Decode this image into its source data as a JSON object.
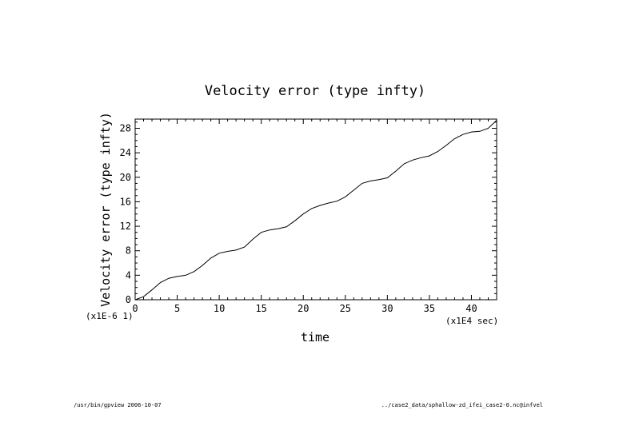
{
  "chart_data": {
    "type": "line",
    "title": "Velocity error (type infty)",
    "xlabel": "time",
    "ylabel": "Velocity error (type infty)",
    "x_unit": "(x1E4 sec)",
    "y_unit": "(x1E-6 1)",
    "xlim": [
      0,
      43
    ],
    "ylim": [
      0,
      29.5
    ],
    "x_ticks": [
      0,
      5,
      10,
      15,
      20,
      25,
      30,
      35,
      40
    ],
    "y_ticks": [
      0,
      4,
      8,
      12,
      16,
      20,
      24,
      28
    ],
    "grid": false,
    "series": [
      {
        "x": [
          0,
          1,
          2,
          3,
          4,
          5,
          6,
          7,
          8,
          9,
          10,
          11,
          12,
          13,
          14,
          15,
          16,
          17,
          18,
          19,
          20,
          21,
          22,
          23,
          24,
          25,
          26,
          27,
          28,
          29,
          30,
          31,
          32,
          33,
          34,
          35,
          36,
          37,
          38,
          39,
          40,
          41,
          42,
          43
        ],
        "y": [
          0,
          0.5,
          1.6,
          2.8,
          3.5,
          3.8,
          4.0,
          4.6,
          5.6,
          6.8,
          7.6,
          7.9,
          8.1,
          8.6,
          9.9,
          11.0,
          11.4,
          11.6,
          11.9,
          12.9,
          14.0,
          14.9,
          15.4,
          15.8,
          16.1,
          16.8,
          17.9,
          19.0,
          19.4,
          19.6,
          19.9,
          21.0,
          22.2,
          22.8,
          23.2,
          23.5,
          24.2,
          25.2,
          26.3,
          27.0,
          27.4,
          27.5,
          28.0,
          29.3
        ]
      }
    ]
  },
  "footer": {
    "left": "/usr/bin/gpview  2006-10-07",
    "right": "../case2_data/sphallow-zd_ifei_case2-0.nc@infvel"
  }
}
